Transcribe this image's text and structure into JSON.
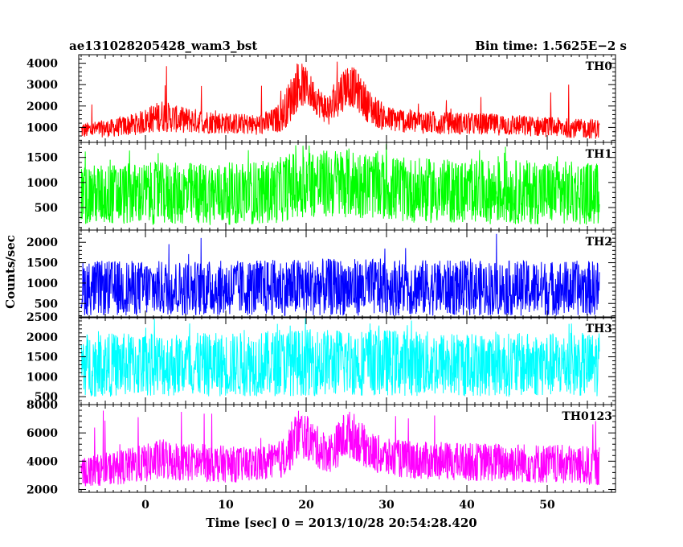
{
  "header": {
    "left_title": "ae131028205428_wam3_bst",
    "right_title": "Bin time: 1.5625E−2 s"
  },
  "axes": {
    "xlabel": "Time [sec] 0 = 2013/10/28 20:54:28.420",
    "ylabel": "Counts/sec"
  },
  "chart_data": {
    "type": "line",
    "title": "ae131028205428_wam3_bst",
    "subtitle": "Bin time: 1.5625E−2 s",
    "xlabel": "Time [sec] 0 = 2013/10/28 20:54:28.420",
    "ylabel": "Counts/sec",
    "xlim": [
      -8.3,
      58.5
    ],
    "data_xrange": [
      -8.0,
      56.5
    ],
    "xticks": [
      0,
      10,
      20,
      30,
      40,
      50
    ],
    "xtick_labels": [
      "0",
      "10",
      "20",
      "30",
      "40",
      "50"
    ],
    "panels": [
      {
        "name": "TH0",
        "color": "#ff0000",
        "ylim": [
          300,
          4400
        ],
        "yticks": [
          1000,
          2000,
          3000,
          4000
        ],
        "ytick_labels": [
          "1000",
          "2000",
          "3000",
          "4000"
        ],
        "envelope": {
          "t": [
            -8,
            -4,
            -1,
            1,
            2,
            4,
            6,
            10,
            14,
            16,
            17,
            18,
            19,
            20,
            21,
            22,
            23,
            24,
            25,
            26,
            27,
            28,
            30,
            34,
            40,
            46,
            50,
            54,
            56.5
          ],
          "low": [
            500,
            550,
            650,
            750,
            800,
            750,
            720,
            700,
            650,
            700,
            800,
            1200,
            1900,
            2000,
            1700,
            1300,
            1000,
            1400,
            2000,
            1900,
            1500,
            1100,
            800,
            700,
            650,
            600,
            550,
            500,
            450
          ],
          "high": [
            1200,
            1400,
            1700,
            2100,
            2300,
            2000,
            1900,
            1700,
            1600,
            1900,
            2300,
            3300,
            4200,
            3800,
            3200,
            2700,
            2600,
            3500,
            4000,
            3800,
            3300,
            2700,
            2000,
            1800,
            1700,
            1600,
            1500,
            1400,
            1400
          ]
        },
        "label": "TH0"
      },
      {
        "name": "TH1",
        "color": "#00ff00",
        "ylim": [
          50,
          1800
        ],
        "yticks": [
          500,
          1000,
          1500
        ],
        "ytick_labels": [
          "500",
          "1000",
          "1500"
        ],
        "envelope": {
          "t": [
            -8,
            0,
            10,
            16,
            18,
            20,
            22,
            25,
            28,
            32,
            40,
            50,
            56.5
          ],
          "low": [
            150,
            150,
            150,
            170,
            250,
            300,
            280,
            300,
            280,
            200,
            170,
            160,
            150
          ],
          "high": [
            1350,
            1400,
            1400,
            1450,
            1600,
            1700,
            1650,
            1700,
            1600,
            1500,
            1450,
            1450,
            1400
          ]
        },
        "label": "TH1"
      },
      {
        "name": "TH2",
        "color": "#0000ff",
        "ylim": [
          150,
          2300
        ],
        "yticks": [
          500,
          1000,
          1500,
          2000
        ],
        "ytick_labels": [
          "500",
          "1000",
          "1500",
          "2000"
        ],
        "envelope": {
          "t": [
            -8,
            10,
            20,
            30,
            40,
            56.5
          ],
          "low": [
            200,
            200,
            200,
            200,
            200,
            200
          ],
          "high": [
            1550,
            1550,
            1600,
            1600,
            1550,
            1550
          ]
        },
        "label": "TH2"
      },
      {
        "name": "TH3",
        "color": "#00ffff",
        "ylim": [
          300,
          2500
        ],
        "yticks": [
          500,
          1000,
          1500,
          2000,
          2500
        ],
        "ytick_labels": [
          "500",
          "1000",
          "1500",
          "2000",
          "2500"
        ],
        "envelope": {
          "t": [
            -8,
            10,
            20,
            30,
            40,
            56.5
          ],
          "low": [
            500,
            500,
            520,
            520,
            500,
            500
          ],
          "high": [
            2100,
            2100,
            2200,
            2200,
            2100,
            2100
          ]
        },
        "label": "TH3"
      },
      {
        "name": "TH0123",
        "color": "#ff00ff",
        "ylim": [
          1800,
          8000
        ],
        "yticks": [
          2000,
          4000,
          6000,
          8000
        ],
        "ytick_labels": [
          "2000",
          "4000",
          "6000",
          "8000"
        ],
        "envelope": {
          "t": [
            -8,
            -4,
            0,
            2,
            4,
            8,
            12,
            16,
            17,
            18,
            19,
            20,
            21,
            22,
            23,
            24,
            25,
            26,
            27,
            28,
            30,
            34,
            40,
            46,
            50,
            54,
            56.5
          ],
          "low": [
            2200,
            2300,
            2500,
            2600,
            2600,
            2500,
            2500,
            2600,
            2800,
            3300,
            4200,
            4100,
            3700,
            3300,
            3200,
            3600,
            4200,
            4100,
            3700,
            3300,
            2900,
            2700,
            2600,
            2500,
            2400,
            2300,
            2200
          ],
          "high": [
            4300,
            4700,
            5200,
            5600,
            5400,
            5200,
            5000,
            5200,
            5600,
            6600,
            7800,
            7300,
            6700,
            6200,
            6000,
            6800,
            7700,
            7400,
            6700,
            6100,
            5600,
            5400,
            5300,
            5300,
            5200,
            5100,
            5000
          ]
        },
        "label": "TH0123"
      }
    ]
  }
}
